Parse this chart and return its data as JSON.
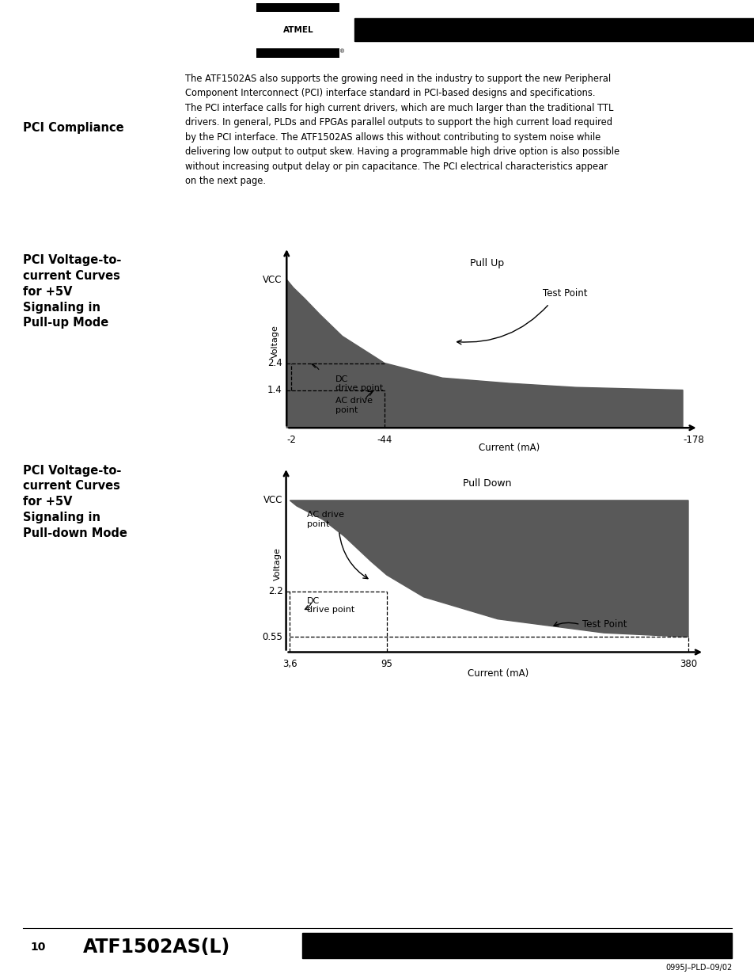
{
  "bg_color": "#ffffff",
  "title_text": "PCI Compliance",
  "body_text": "The ATF1502AS also supports the growing need in the industry to support the new Peripheral\nComponent Interconnect (PCI) interface standard in PCI-based designs and specifications.\nThe PCI interface calls for high current drivers, which are much larger than the traditional TTL\ndrivers. In general, PLDs and FPGAs parallel outputs to support the high current load required\nby the PCI interface. The ATF1502AS allows this without contributing to system noise while\ndelivering low output to output skew. Having a programmable high drive option is also possible\nwithout increasing output delay or pin capacitance. The PCI electrical characteristics appear\non the next page.",
  "chart1_label": "PCI Voltage-to-\ncurrent Curves\nfor +5V\nSignaling in\nPull-up Mode",
  "chart2_label": "PCI Voltage-to-\ncurrent Curves\nfor +5V\nSignaling in\nPull-down Mode",
  "footer_page": "10",
  "footer_chip": "ATF1502AS(L)",
  "footer_code": "0995J–PLD–09/02",
  "gray_fill": "#595959",
  "chart1_xlim": [
    -185,
    15
  ],
  "chart1_ylim": [
    0,
    6.5
  ],
  "chart2_xlim": [
    -10,
    400
  ],
  "chart2_ylim": [
    0,
    6.5
  ]
}
